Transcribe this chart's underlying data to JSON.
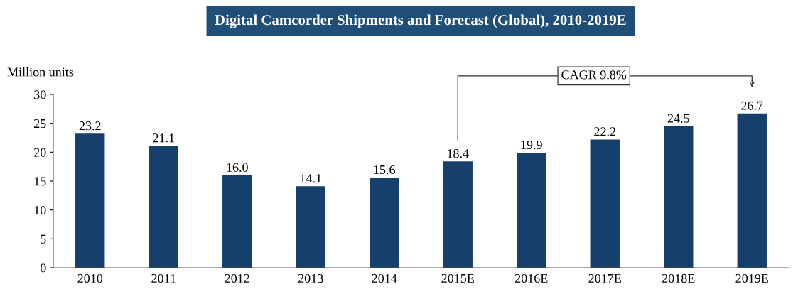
{
  "chart_data": {
    "type": "bar",
    "title": "Digital Camcorder Shipments and Forecast (Global), 2010-2019E",
    "ylabel": "Million units",
    "categories": [
      "2010",
      "2011",
      "2012",
      "2013",
      "2014",
      "2015E",
      "2016E",
      "2017E",
      "2018E",
      "2019E"
    ],
    "values": [
      23.2,
      21.1,
      16.0,
      14.1,
      15.6,
      18.4,
      19.9,
      22.2,
      24.5,
      26.7
    ],
    "value_labels": [
      "23.2",
      "21.1",
      "16.0",
      "14.1",
      "15.6",
      "18.4",
      "19.9",
      "22.2",
      "24.5",
      "26.7"
    ],
    "color": "#173f6b",
    "ylim": [
      0,
      30
    ],
    "yticks": [
      0,
      5,
      10,
      15,
      20,
      25,
      30
    ],
    "grid": false,
    "legend": false,
    "annotations": [
      "CAGR 9.8%"
    ]
  }
}
